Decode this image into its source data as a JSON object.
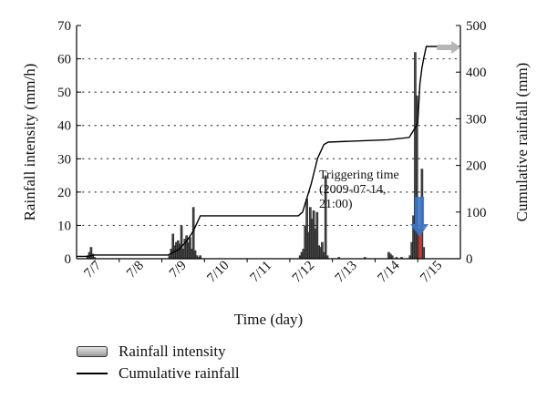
{
  "chart_data": {
    "type": "bar",
    "xlabel": "Time (day)",
    "ylabel": "Rainfall intensity (mm/h)",
    "y2label": "Cumulative rainfall (mm)",
    "xlim": [
      0,
      9
    ],
    "ylim": [
      0,
      70
    ],
    "y2lim": [
      0,
      500
    ],
    "x_ticks": [
      {
        "x": 0.5,
        "label": "7/7"
      },
      {
        "x": 1.5,
        "label": "7/8"
      },
      {
        "x": 2.5,
        "label": "7/9"
      },
      {
        "x": 3.5,
        "label": "7/10"
      },
      {
        "x": 4.5,
        "label": "7/11"
      },
      {
        "x": 5.5,
        "label": "7/12"
      },
      {
        "x": 6.5,
        "label": "7/13"
      },
      {
        "x": 7.5,
        "label": "7/14"
      },
      {
        "x": 8.5,
        "label": "7/15"
      }
    ],
    "y_ticks": [
      0,
      10,
      20,
      30,
      40,
      50,
      60,
      70
    ],
    "y2_ticks": [
      0,
      100,
      200,
      300,
      400,
      500
    ],
    "grid": "horizontal dotted",
    "legend_position": "bottom-left",
    "series": [
      {
        "name": "Rainfall intensity",
        "type": "bar",
        "axis": "left",
        "x": [
          0.26,
          0.3,
          0.34,
          0.38,
          0.42,
          2.18,
          2.22,
          2.26,
          2.3,
          2.34,
          2.38,
          2.42,
          2.46,
          2.5,
          2.54,
          2.58,
          2.62,
          2.66,
          2.7,
          2.74,
          2.78,
          2.82,
          2.86,
          2.9,
          5.24,
          5.28,
          5.32,
          5.36,
          5.4,
          5.44,
          5.48,
          5.52,
          5.56,
          5.6,
          5.64,
          5.68,
          5.72,
          5.76,
          5.8,
          5.84,
          5.88,
          6.15,
          6.76,
          7.32,
          7.36,
          7.4,
          7.5,
          7.62,
          7.82,
          7.86,
          7.9,
          7.94,
          7.98,
          8.02,
          8.06,
          8.1,
          8.14
        ],
        "values": [
          1,
          2,
          3.5,
          1.5,
          0.5,
          1,
          3,
          7.5,
          4,
          5,
          5.5,
          4.5,
          10,
          3,
          6,
          7,
          5,
          6.5,
          3,
          15.5,
          2.5,
          1,
          0.5,
          1,
          1,
          2,
          3,
          10,
          18,
          8,
          15.5,
          12,
          14.5,
          9,
          14,
          4,
          3.5,
          5,
          2,
          25,
          1,
          0.5,
          0.5,
          2,
          1.5,
          1,
          0.5,
          0.5,
          1,
          5,
          13,
          62,
          49,
          9,
          2,
          27,
          3.5
        ]
      },
      {
        "name": "Cumulative rainfall",
        "type": "line",
        "axis": "right",
        "x": [
          0,
          0.26,
          0.42,
          2.15,
          2.4,
          2.6,
          2.74,
          2.9,
          5.2,
          5.3,
          5.5,
          5.65,
          5.8,
          5.9,
          7.3,
          7.8,
          8.0,
          8.05,
          8.1,
          8.14,
          8.2,
          9.0
        ],
        "values": [
          5,
          5,
          8,
          8,
          20,
          40,
          60,
          92,
          92,
          100,
          160,
          215,
          245,
          250,
          255,
          260,
          290,
          375,
          410,
          430,
          455,
          455
        ]
      }
    ],
    "highlight_bar": {
      "x": 8.06,
      "value": 9,
      "color": "#e0332b"
    },
    "annotation": {
      "lines": [
        "Triggering time",
        "(2009-07-14,",
        "21:00)"
      ],
      "arrow_color": "#3d77c8"
    }
  },
  "legend": {
    "items": [
      {
        "label": "Rainfall intensity"
      },
      {
        "label": "Cumulative rainfall"
      }
    ]
  }
}
